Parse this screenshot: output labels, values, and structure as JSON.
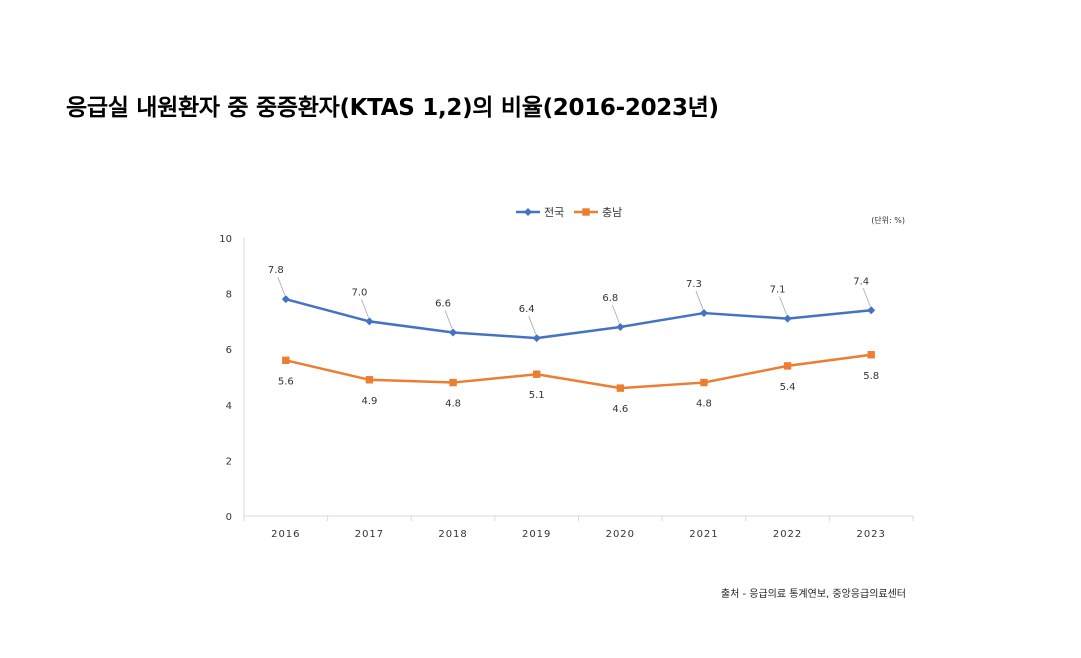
{
  "title": "응급실 내원환자 중 중증환자(KTAS 1,2)의 비율(2016-2023년)",
  "source": "출처 - 응급의료 통계연보, 중앙응급의료센터",
  "chart_data": {
    "type": "line",
    "title": "",
    "xlabel": "",
    "ylabel": "",
    "unit_note": "(단위: %)",
    "categories": [
      "2016",
      "2017",
      "2018",
      "2019",
      "2020",
      "2021",
      "2022",
      "2023"
    ],
    "y_ticks": [
      "0",
      "2",
      "4",
      "6",
      "8",
      "10"
    ],
    "ylim": [
      0,
      10
    ],
    "grid": false,
    "legend_position": "top-center",
    "series": [
      {
        "name": "전국",
        "color": "#4472C4",
        "marker": "diamond",
        "values": [
          7.8,
          7.0,
          6.6,
          6.4,
          6.8,
          7.3,
          7.1,
          7.4
        ],
        "labels": [
          "7.8",
          "7.0",
          "6.6",
          "6.4",
          "6.8",
          "7.3",
          "7.1",
          "7.4"
        ]
      },
      {
        "name": "충남",
        "color": "#ED7D31",
        "marker": "square",
        "values": [
          5.6,
          4.9,
          4.8,
          5.1,
          4.6,
          4.8,
          5.4,
          5.8
        ],
        "labels": [
          "5.6",
          "4.9",
          "4.8",
          "5.1",
          "4.6",
          "4.8",
          "5.4",
          "5.8"
        ]
      }
    ]
  }
}
